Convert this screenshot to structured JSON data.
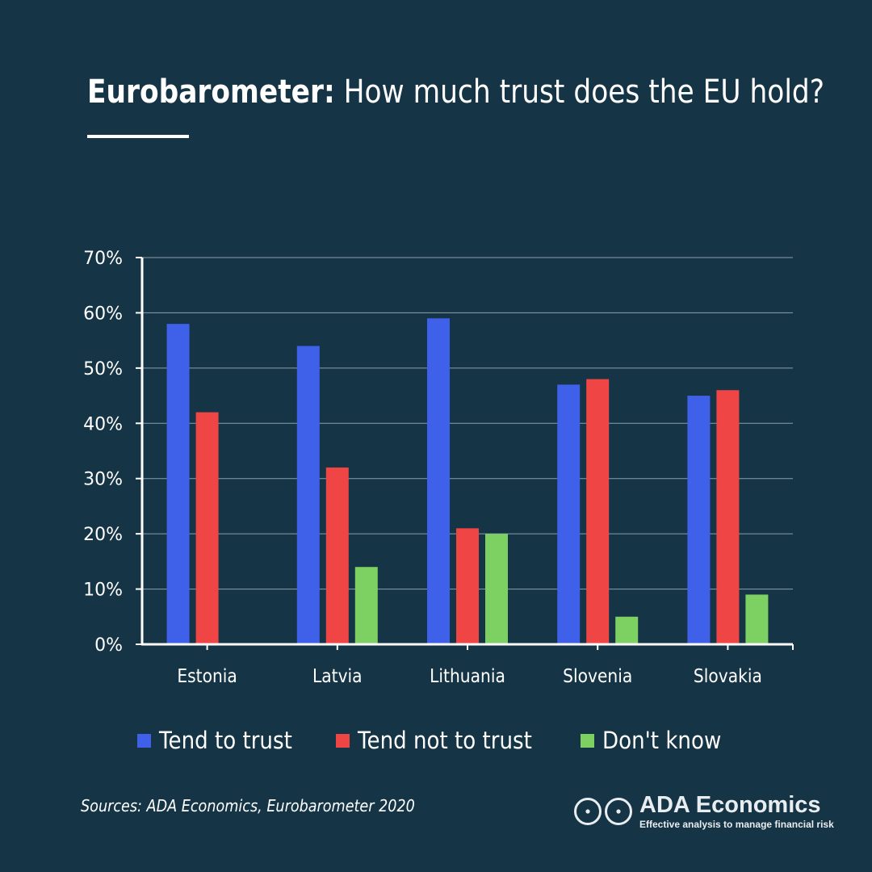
{
  "header": {
    "title_bold": "Eurobarometer:",
    "title_rest": " How much trust does the EU hold?"
  },
  "chart_data": {
    "type": "bar",
    "categories": [
      "Estonia",
      "Latvia",
      "Lithuania",
      "Slovenia",
      "Slovakia"
    ],
    "series": [
      {
        "name": "Tend to trust",
        "color": "#3f60e8",
        "values": [
          58,
          54,
          59,
          47,
          45
        ]
      },
      {
        "name": "Tend not to trust",
        "color": "#ef4545",
        "values": [
          42,
          32,
          21,
          48,
          46
        ]
      },
      {
        "name": "Don't know",
        "color": "#7dd062",
        "values": [
          0,
          14,
          20,
          5,
          9
        ]
      }
    ],
    "ylim": [
      0,
      70
    ],
    "yticks": [
      "0%",
      "10%",
      "20%",
      "30%",
      "40%",
      "50%",
      "60%",
      "70%"
    ],
    "grid": true,
    "legend_position": "bottom"
  },
  "footer": {
    "source": "Sources: ADA Economics, Eurobarometer 2020",
    "logo_name": "ADA Economics",
    "logo_tagline": "Effective analysis to manage financial risk"
  }
}
